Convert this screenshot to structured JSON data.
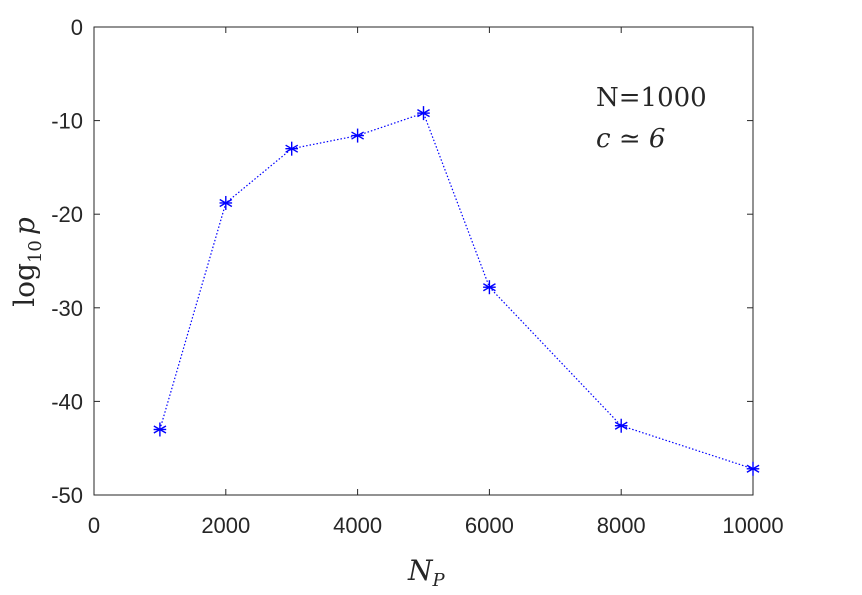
{
  "chart_data": {
    "type": "line",
    "xlabel": {
      "base": "N",
      "sub": "P"
    },
    "ylabel": {
      "base": "log",
      "sub": "10",
      "var": "p"
    },
    "xlim": [
      0,
      10000
    ],
    "ylim": [
      -50,
      0
    ],
    "x_ticks": [
      0,
      2000,
      4000,
      6000,
      8000,
      10000
    ],
    "x_tick_labels": [
      "0",
      "2000",
      "4000",
      "6000",
      "8000",
      "10000"
    ],
    "y_ticks": [
      0,
      -10,
      -20,
      -30,
      -40,
      -50
    ],
    "y_tick_labels": [
      "0",
      "-10",
      "-20",
      "-30",
      "-40",
      "-50"
    ],
    "grid": false,
    "annotations": [
      "N=1000",
      "c ≃ 6"
    ],
    "series": [
      {
        "x": [
          1000,
          2000,
          3000,
          4000,
          5000,
          6000,
          8000,
          10000
        ],
        "y": [
          -43.0,
          -18.8,
          -13.0,
          -11.6,
          -9.2,
          -27.8,
          -42.6,
          -47.2
        ],
        "color": "#0000ff",
        "line_style": "dotted",
        "marker": "asterisk"
      }
    ]
  }
}
